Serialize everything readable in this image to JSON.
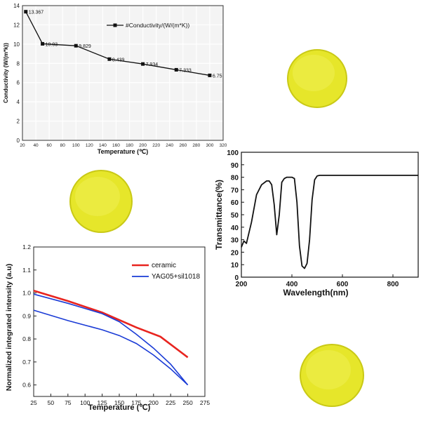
{
  "colors": {
    "disk_fill": "#e6e62a",
    "disk_edge": "#c9c916",
    "disk_highlight": "#f4f46a",
    "ceramic": "#e8241f",
    "yag": "#1a3bd6",
    "line_black": "#111111"
  },
  "chart_data": [
    {
      "type": "line",
      "xlabel": "Temperature (℃)",
      "ylabel": "Conductivity (W/(m*k))",
      "xlim": [
        20,
        320
      ],
      "ylim": [
        0,
        14
      ],
      "xticks": [
        "20",
        "40",
        "60",
        "80",
        "100",
        "120",
        "140",
        "160",
        "180",
        "200",
        "220",
        "240",
        "260",
        "280",
        "300",
        "320"
      ],
      "yticks": [
        "0",
        "2",
        "4",
        "6",
        "8",
        "10",
        "12",
        "14"
      ],
      "grid": true,
      "legend": "top-right",
      "series": [
        {
          "name": "#Conductivity/(W/(m*K))",
          "x": [
            25,
            50,
            100,
            150,
            200,
            250,
            300
          ],
          "values": [
            13.367,
            10.03,
            9.829,
            8.439,
            7.934,
            7.333,
            6.75
          ],
          "labels": [
            "13.367",
            "10.03",
            "9.829",
            "8.439",
            "7.934",
            "7.333",
            "6.75"
          ]
        }
      ]
    },
    {
      "type": "line",
      "xlabel": "Wavelength(nm)",
      "ylabel": "Transmittance(%)",
      "xlim": [
        200,
        900
      ],
      "ylim": [
        0,
        100
      ],
      "xticks": [
        "200",
        "400",
        "600",
        "800"
      ],
      "yticks": [
        "0",
        "10",
        "20",
        "30",
        "40",
        "50",
        "60",
        "70",
        "80",
        "90",
        "100"
      ],
      "grid": false,
      "series": [
        {
          "x": [
            200,
            210,
            220,
            240,
            260,
            280,
            300,
            310,
            320,
            330,
            340,
            350,
            360,
            370,
            380,
            390,
            400,
            410,
            420,
            430,
            440,
            450,
            460,
            470,
            480,
            490,
            500,
            510,
            520,
            540,
            560,
            600,
            700,
            800,
            900
          ],
          "values": [
            24,
            29,
            27,
            44,
            66,
            74,
            77,
            77,
            74,
            58,
            34,
            50,
            76,
            79,
            80,
            80,
            80,
            79,
            60,
            25,
            9,
            7,
            11,
            30,
            62,
            78,
            81,
            81.5,
            81.5,
            81.5,
            81.5,
            81.5,
            81.5,
            81.5,
            81.5
          ]
        }
      ]
    },
    {
      "type": "line",
      "xlabel": "Temperature (℃)",
      "ylabel": "Normalized integrated intensity (a.u)",
      "xlim": [
        25,
        275
      ],
      "ylim": [
        0.55,
        1.2
      ],
      "xticks": [
        "25",
        "50",
        "75",
        "100",
        "125",
        "150",
        "175",
        "200",
        "225",
        "250",
        "275"
      ],
      "yticks": [
        "0.6",
        "0.7",
        "0.8",
        "0.9",
        "1.0",
        "1.1",
        "1.2"
      ],
      "grid": false,
      "legend": "top-right",
      "series": [
        {
          "name": "ceramic",
          "x": [
            25,
            75,
            125,
            175,
            210,
            250
          ],
          "values": [
            1.01,
            0.965,
            0.915,
            0.85,
            0.81,
            0.72
          ]
        },
        {
          "name": "YAG05+sil1018",
          "x": [
            25,
            75,
            125,
            150,
            175,
            200,
            225,
            250
          ],
          "values": [
            0.995,
            0.955,
            0.91,
            0.875,
            0.82,
            0.76,
            0.69,
            0.6
          ]
        },
        {
          "x": [
            25,
            75,
            125,
            150,
            175,
            200,
            225,
            250
          ],
          "values": [
            0.925,
            0.88,
            0.84,
            0.815,
            0.78,
            0.73,
            0.67,
            0.6
          ]
        }
      ]
    }
  ]
}
